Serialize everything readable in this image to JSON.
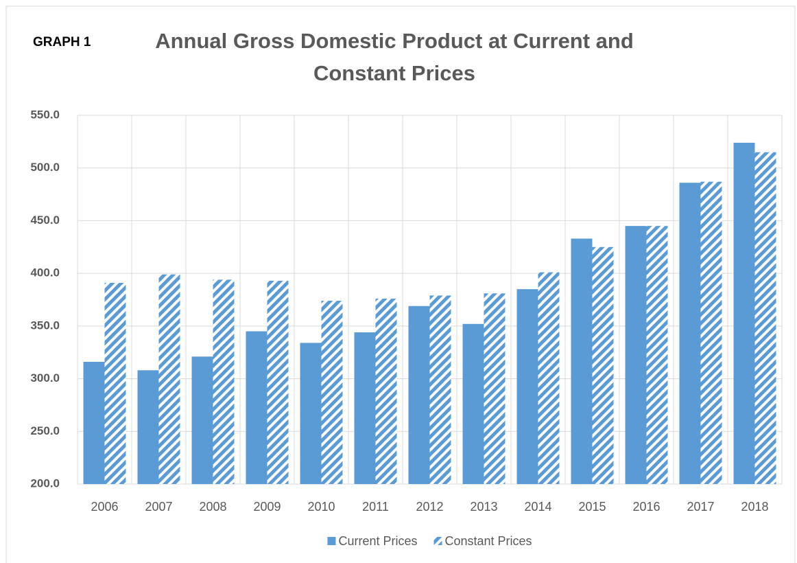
{
  "chart_data": {
    "type": "bar",
    "label": "GRAPH 1",
    "title": "Annual Gross Domestic Product at Current and Constant Prices",
    "categories": [
      "2006",
      "2007",
      "2008",
      "2009",
      "2010",
      "2011",
      "2012",
      "2013",
      "2014",
      "2015",
      "2016",
      "2017",
      "2018"
    ],
    "series": [
      {
        "name": "Current Prices",
        "color": "#5b9bd5",
        "values": [
          316,
          308,
          321,
          345,
          334,
          344,
          369,
          352,
          385,
          433,
          445,
          486,
          524
        ]
      },
      {
        "name": "Constant Prices",
        "color": "#5b9bd5",
        "hatch": true,
        "values": [
          391,
          399,
          394,
          393,
          374,
          376,
          379,
          381,
          401,
          425,
          445,
          487,
          515
        ]
      }
    ],
    "ylim": [
      200,
      550
    ],
    "yticks": [
      {
        "value": 200,
        "label": "200.0"
      },
      {
        "value": 250,
        "label": "250.0"
      },
      {
        "value": 300,
        "label": "300.0"
      },
      {
        "value": 350,
        "label": "350.0"
      },
      {
        "value": 400,
        "label": "400.0"
      },
      {
        "value": 450,
        "label": "450.0"
      },
      {
        "value": 500,
        "label": "500.0"
      },
      {
        "value": 550,
        "label": "550.0"
      }
    ],
    "grid": true,
    "legend": "bottom"
  }
}
